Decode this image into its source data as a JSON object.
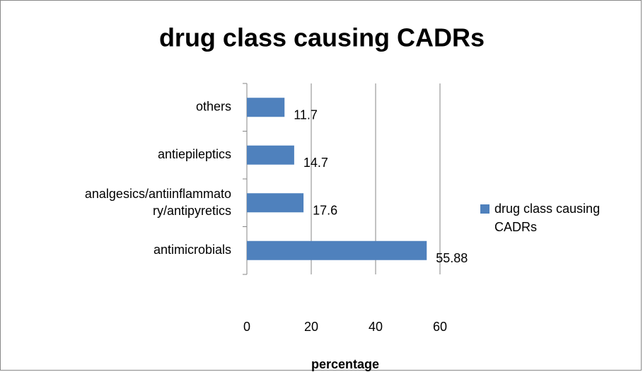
{
  "chart_data": {
    "type": "hbar",
    "title": "drug class causing CADRs",
    "categories": [
      "antimicrobials",
      "analgesics/antiinflammatory/antipyretics",
      "antiepileptics",
      "others"
    ],
    "series": [
      {
        "name": "drug class causing CADRs",
        "color": "#4f81bd",
        "values": [
          55.88,
          17.6,
          14.7,
          11.7
        ]
      }
    ],
    "xlabel": "percentage",
    "xlim": [
      0,
      60
    ],
    "xticks": [
      0,
      20,
      40,
      60
    ],
    "grid": true,
    "legend": "right"
  }
}
